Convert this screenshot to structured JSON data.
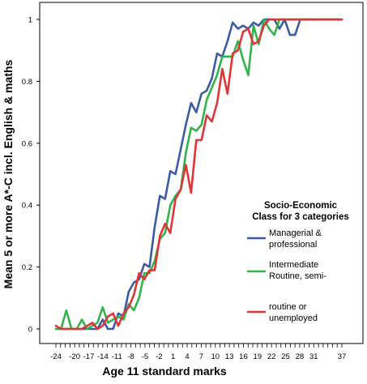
{
  "chart_data": {
    "type": "line",
    "xlabel": "Age 11 standard marks",
    "ylabel": "Mean 5 or more A*-C incl. English & maths",
    "x_tick_labels": [
      "-24",
      "-20",
      "-17",
      "-14",
      "-11",
      "-8",
      "-5",
      "-2",
      "1",
      "4",
      "7",
      "10",
      "13",
      "16",
      "19",
      "22",
      "25",
      "28",
      "31",
      "37"
    ],
    "y_tick_labels": [
      "0",
      "0.2",
      "0.4",
      "0.6",
      "0.8",
      "1"
    ],
    "ylim": [
      0,
      1
    ],
    "grid": false,
    "legend": {
      "placement": "right",
      "title_lines": [
        "Socio-Economic",
        "Class for 3 categories"
      ],
      "entries": [
        {
          "label_lines": [
            "Managerial &",
            "professional"
          ],
          "color": "#3b5aa8"
        },
        {
          "label_lines": [
            "Intermediate",
            "Routine, semi-"
          ],
          "color": "#32b44a"
        },
        {
          "label_lines": [
            "routine or",
            "unemployed"
          ],
          "color": "#e03535"
        }
      ]
    },
    "series": [
      {
        "color": "#3b5aa8",
        "values": [
          0,
          0,
          0,
          0,
          0,
          0,
          0,
          0,
          0,
          0.03,
          0,
          0,
          0.05,
          0.04,
          0.12,
          0.15,
          0.16,
          0.21,
          0.2,
          0.33,
          0.43,
          0.42,
          0.51,
          0.5,
          0.58,
          0.66,
          0.73,
          0.7,
          0.76,
          0.77,
          0.81,
          0.89,
          0.88,
          0.93,
          0.99,
          0.97,
          0.98,
          0.97,
          0.99,
          0.98,
          1,
          1,
          1,
          0.97,
          1,
          0.95,
          0.95,
          1,
          1,
          1,
          1,
          1,
          1,
          1,
          1,
          1
        ],
        "dashed_tail_from_index": 50
      },
      {
        "color": "#32b44a",
        "values": [
          0,
          0,
          0.06,
          0,
          0,
          0.03,
          0,
          0.01,
          0.02,
          0.07,
          0.02,
          0.03,
          0.04,
          0.03,
          0.08,
          0.06,
          0.1,
          0.18,
          0.18,
          0.22,
          0.29,
          0.31,
          0.4,
          0.43,
          0.45,
          0.57,
          0.65,
          0.64,
          0.66,
          0.74,
          0.78,
          0.82,
          0.88,
          0.88,
          0.88,
          0.93,
          0.87,
          0.82,
          0.98,
          0.92,
          1,
          0.97,
          0.95,
          1,
          1,
          1,
          1,
          1,
          1,
          1,
          1,
          1,
          1,
          1,
          1,
          1
        ],
        "dashed_tail_from_index": null
      },
      {
        "color": "#e03535",
        "values": [
          0.01,
          0,
          0,
          0,
          0,
          0,
          0.01,
          0.02,
          0,
          0.01,
          0.04,
          0.05,
          0.01,
          0.05,
          0.07,
          0.11,
          0.18,
          0.16,
          0.19,
          0.19,
          0.3,
          0.34,
          0.31,
          0.42,
          0.45,
          0.53,
          0.44,
          0.61,
          0.61,
          0.69,
          0.67,
          0.73,
          0.84,
          0.76,
          0.89,
          0.9,
          0.96,
          0.97,
          0.92,
          0.93,
          0.98,
          1,
          1,
          1,
          1,
          1,
          1,
          1,
          1,
          1,
          1,
          1,
          1,
          1,
          1,
          1
        ],
        "dashed_tail_from_index": null
      }
    ]
  }
}
